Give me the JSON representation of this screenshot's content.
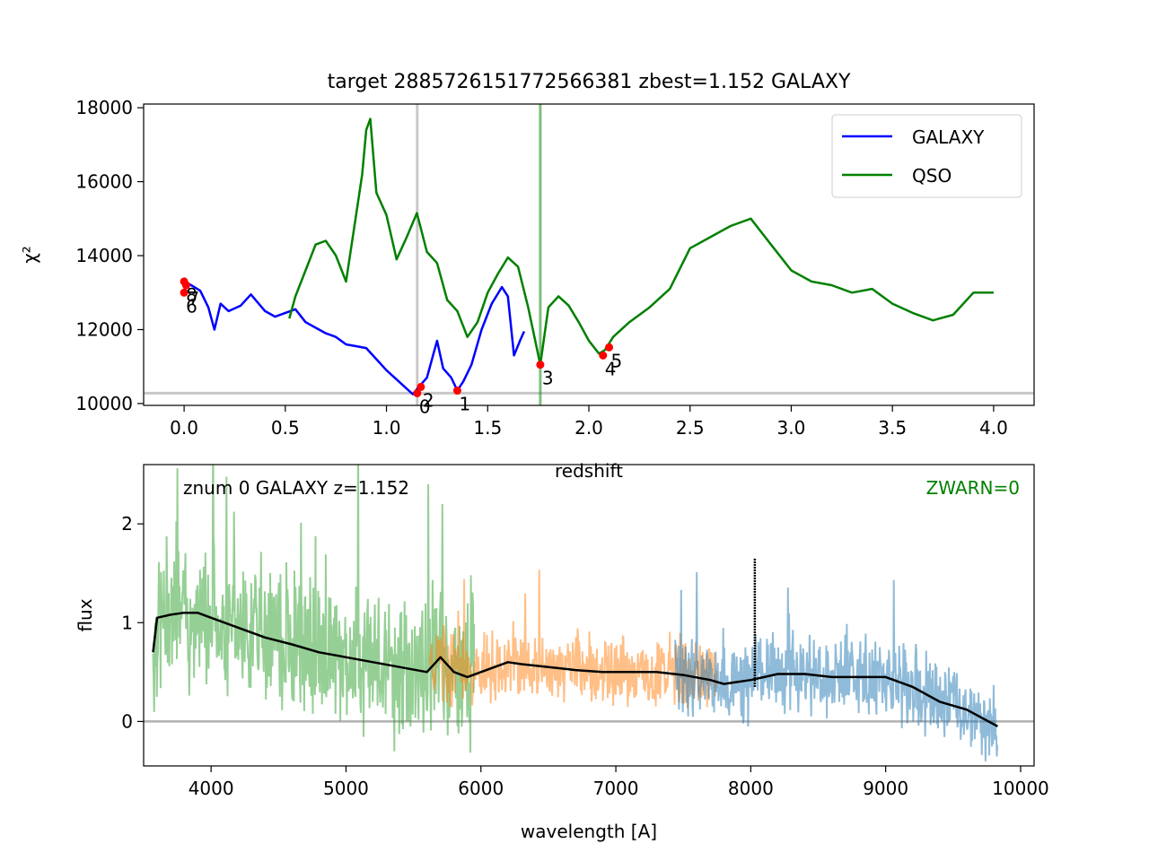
{
  "figure": {
    "title": "target 2885726151772566381  zbest=1.152 GALAXY"
  },
  "chart_data": [
    {
      "type": "line",
      "xlabel": "redshift",
      "ylabel": "χ²",
      "xlim": [
        -0.2,
        4.2
      ],
      "ylim": [
        9950,
        18100
      ],
      "xticks": [
        0.0,
        0.5,
        1.0,
        1.5,
        2.0,
        2.5,
        3.0,
        3.5,
        4.0
      ],
      "xtick_labels": [
        "0.0",
        "0.5",
        "1.0",
        "1.5",
        "2.0",
        "2.5",
        "3.0",
        "3.5",
        "4.0"
      ],
      "yticks": [
        10000,
        12000,
        14000,
        16000,
        18000
      ],
      "ytick_labels": [
        "10000",
        "12000",
        "14000",
        "16000",
        "18000"
      ],
      "legend": {
        "placement": "top-right"
      },
      "series": [
        {
          "name": "GALAXY",
          "color": "#0000ff",
          "x": [
            0.0,
            0.02,
            0.05,
            0.08,
            0.12,
            0.15,
            0.18,
            0.22,
            0.28,
            0.33,
            0.4,
            0.45,
            0.5,
            0.55,
            0.6,
            0.65,
            0.7,
            0.75,
            0.8,
            0.85,
            0.9,
            0.95,
            1.0,
            1.05,
            1.1,
            1.13,
            1.16,
            1.2,
            1.25,
            1.28,
            1.32,
            1.35,
            1.38,
            1.42,
            1.47,
            1.52,
            1.57,
            1.6,
            1.63,
            1.66,
            1.68
          ],
          "y": [
            13400,
            13250,
            13150,
            13050,
            12600,
            12000,
            12700,
            12500,
            12650,
            12950,
            12500,
            12350,
            12450,
            12550,
            12200,
            12050,
            11900,
            11800,
            11600,
            11550,
            11500,
            11200,
            10900,
            10650,
            10400,
            10250,
            10450,
            10700,
            11700,
            10950,
            10700,
            10350,
            10600,
            11050,
            12000,
            12700,
            13150,
            12900,
            11300,
            11700,
            11950
          ]
        },
        {
          "name": "QSO",
          "color": "#008000",
          "x": [
            0.52,
            0.55,
            0.6,
            0.65,
            0.7,
            0.75,
            0.8,
            0.85,
            0.88,
            0.9,
            0.92,
            0.95,
            1.0,
            1.05,
            1.1,
            1.15,
            1.2,
            1.25,
            1.3,
            1.35,
            1.4,
            1.45,
            1.5,
            1.55,
            1.6,
            1.65,
            1.7,
            1.76,
            1.8,
            1.85,
            1.9,
            1.95,
            2.0,
            2.05,
            2.08,
            2.12,
            2.2,
            2.3,
            2.4,
            2.5,
            2.6,
            2.7,
            2.8,
            2.9,
            3.0,
            3.1,
            3.2,
            3.3,
            3.4,
            3.5,
            3.6,
            3.7,
            3.8,
            3.9,
            4.0
          ],
          "y": [
            12300,
            12900,
            13600,
            14300,
            14400,
            14000,
            13300,
            15100,
            16200,
            17400,
            17700,
            15700,
            15100,
            13900,
            14500,
            15150,
            14100,
            13800,
            12800,
            12500,
            11800,
            12200,
            13000,
            13500,
            13950,
            13700,
            12600,
            11050,
            12600,
            12900,
            12650,
            12200,
            11700,
            11350,
            11450,
            11800,
            12200,
            12600,
            13100,
            14200,
            14500,
            14800,
            15000,
            14300,
            13600,
            13300,
            13200,
            13000,
            13100,
            12700,
            12450,
            12250,
            12400,
            13000,
            13000
          ]
        }
      ],
      "minima": [
        {
          "label": "0",
          "x": 1.152,
          "y": 10280
        },
        {
          "label": "1",
          "x": 1.35,
          "y": 10350
        },
        {
          "label": "2",
          "x": 1.17,
          "y": 10450
        },
        {
          "label": "3",
          "x": 1.76,
          "y": 11050
        },
        {
          "label": "4",
          "x": 2.07,
          "y": 11300
        },
        {
          "label": "5",
          "x": 2.1,
          "y": 11520
        },
        {
          "label": "6",
          "x": 0.0,
          "y": 13000
        },
        {
          "label": "7",
          "x": 0.01,
          "y": 13200
        },
        {
          "label": "8",
          "x": 0.0,
          "y": 13300
        }
      ],
      "markers": {
        "zbest_vline": {
          "x": 1.152,
          "color": "#c8c8c8"
        },
        "qso_vline": {
          "x": 1.76,
          "color": "#008000"
        },
        "hline": {
          "y": 10280,
          "color": "#c8c8c8"
        }
      }
    },
    {
      "type": "line",
      "xlabel": "wavelength [A]",
      "ylabel": "flux",
      "xlim": [
        3500,
        10100
      ],
      "ylim": [
        -0.45,
        2.6
      ],
      "xticks": [
        4000,
        5000,
        6000,
        7000,
        8000,
        9000,
        10000
      ],
      "xtick_labels": [
        "4000",
        "5000",
        "6000",
        "7000",
        "8000",
        "9000",
        "10000"
      ],
      "yticks": [
        0,
        1,
        2
      ],
      "ytick_labels": [
        "0",
        "1",
        "2"
      ],
      "annotation_left": "znum 0 GALAXY z=1.152",
      "annotation_right": "ZWARN=0",
      "annotation_right_color": "#008000",
      "zero_line_color": "#b0b0b0",
      "series": [
        {
          "band": "b",
          "color": "#2ca02c",
          "alpha": 0.5,
          "x_range": [
            3570,
            5950
          ],
          "noise": 0.9
        },
        {
          "band": "r",
          "color": "#ff7f0e",
          "alpha": 0.5,
          "x_range": [
            5620,
            7750
          ],
          "noise": 0.45
        },
        {
          "band": "z",
          "color": "#1f77b4",
          "alpha": 0.5,
          "x_range": [
            7440,
            9830
          ],
          "noise": 0.5
        }
      ],
      "model": {
        "color": "#000000",
        "x": [
          3570,
          3600,
          3700,
          3800,
          3900,
          4000,
          4200,
          4400,
          4600,
          4800,
          5000,
          5200,
          5400,
          5600,
          5700,
          5800,
          5900,
          6000,
          6100,
          6200,
          6300,
          6500,
          6700,
          6900,
          7100,
          7300,
          7500,
          7700,
          7800,
          7900,
          8000,
          8100,
          8200,
          8400,
          8600,
          8800,
          9000,
          9200,
          9400,
          9600,
          9830
        ],
        "y": [
          0.7,
          1.05,
          1.08,
          1.1,
          1.1,
          1.05,
          0.95,
          0.85,
          0.78,
          0.7,
          0.65,
          0.6,
          0.55,
          0.5,
          0.65,
          0.5,
          0.45,
          0.5,
          0.55,
          0.6,
          0.58,
          0.55,
          0.52,
          0.5,
          0.5,
          0.5,
          0.47,
          0.42,
          0.38,
          0.4,
          0.42,
          0.45,
          0.48,
          0.48,
          0.45,
          0.45,
          0.45,
          0.35,
          0.2,
          0.12,
          -0.05
        ]
      },
      "spike": {
        "x": 8030,
        "y_top": 1.65
      }
    }
  ]
}
